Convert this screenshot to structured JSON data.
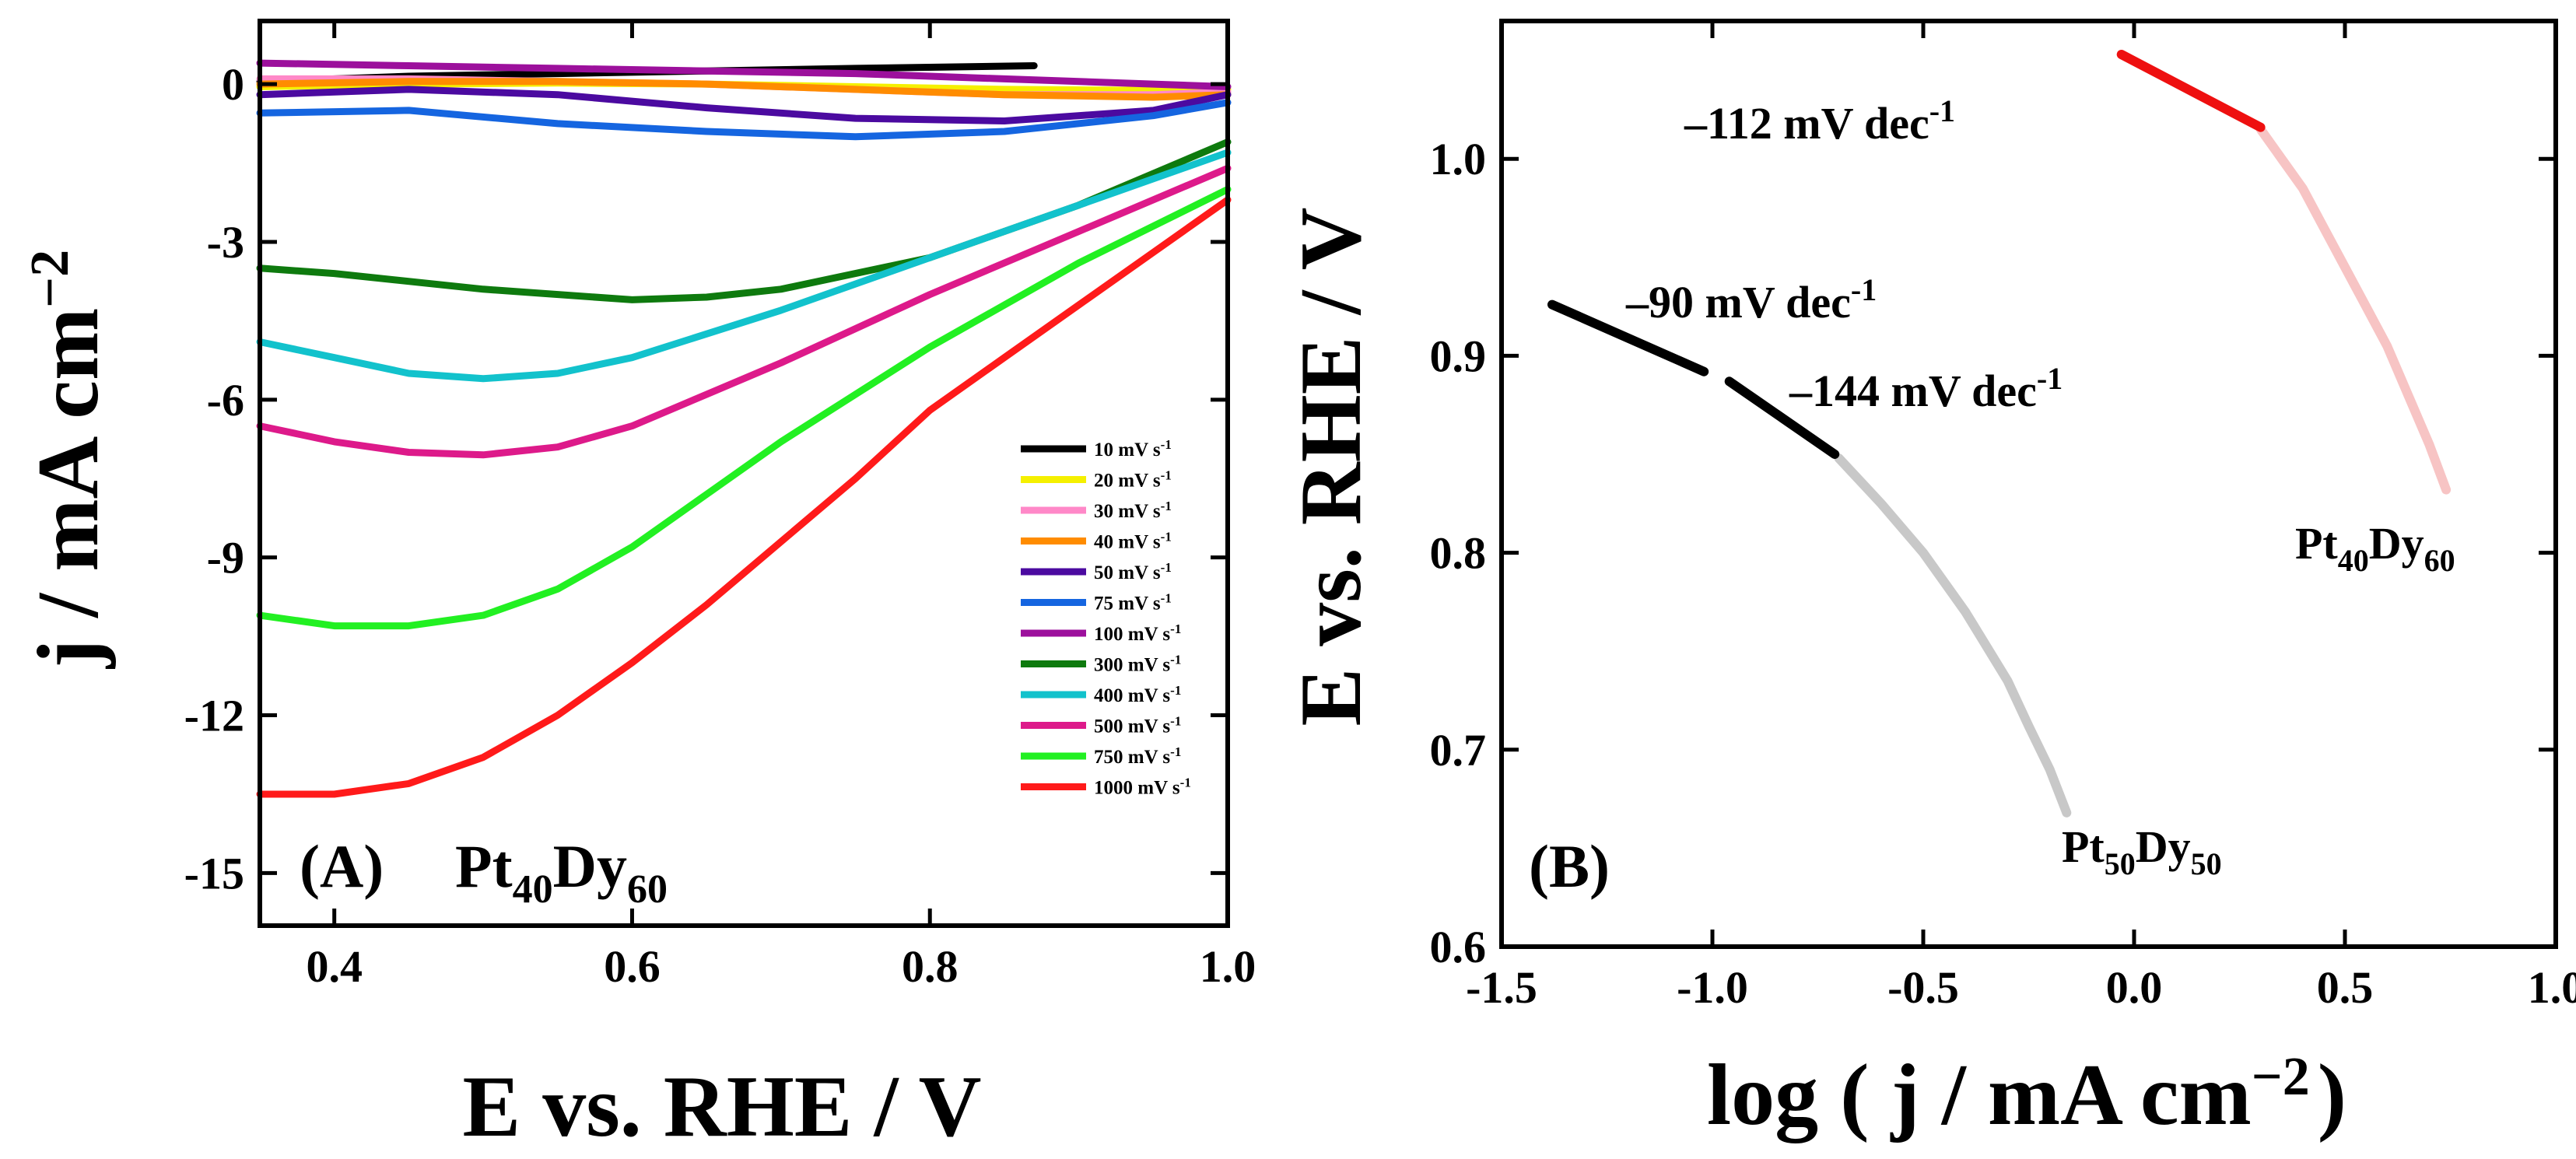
{
  "chart_data": [
    {
      "type": "line",
      "panel": "A",
      "panel_label": "(A)",
      "sample_label": "Pt",
      "sample_sub1": "40",
      "sample_mid": "Dy",
      "sample_sub2": "60",
      "xlabel": "E vs. RHE / V",
      "ylabel_main": "j / mA cm",
      "ylabel_exp": "−2",
      "xlim": [
        0.35,
        1.0
      ],
      "ylim": [
        -16,
        1.2
      ],
      "xticks": [
        0.4,
        0.6,
        0.8,
        1.0
      ],
      "xtick_labels": [
        "0.4",
        "0.6",
        "0.8",
        "1.0"
      ],
      "yticks": [
        0,
        -3,
        -6,
        -9,
        -12,
        -15
      ],
      "ytick_labels": [
        "0",
        "-3",
        "-6",
        "-9",
        "-12",
        "-15"
      ],
      "legend_position": "bottom-right",
      "legend_unit": "mV s",
      "legend_exp": "-1",
      "series": [
        {
          "name": "10",
          "color": "#000000",
          "x": [
            0.35,
            0.45,
            0.55,
            0.65,
            0.75,
            0.87
          ],
          "y": [
            0.05,
            0.15,
            0.2,
            0.25,
            0.3,
            0.35
          ]
        },
        {
          "name": "20",
          "color": "#f5f000",
          "x": [
            0.35,
            0.45,
            0.55,
            0.65,
            0.75,
            0.85,
            0.95,
            1.0
          ],
          "y": [
            -0.05,
            0.0,
            0.02,
            0.0,
            -0.05,
            -0.1,
            -0.12,
            -0.1
          ]
        },
        {
          "name": "30",
          "color": "#ff88c8",
          "x": [
            0.35,
            0.45,
            0.55,
            0.65,
            0.75,
            0.85,
            0.95,
            1.0
          ],
          "y": [
            0.1,
            0.1,
            0.05,
            0.0,
            -0.1,
            -0.2,
            -0.2,
            -0.15
          ]
        },
        {
          "name": "40",
          "color": "#ff8c00",
          "x": [
            0.35,
            0.45,
            0.55,
            0.65,
            0.75,
            0.85,
            0.95,
            1.0
          ],
          "y": [
            0.0,
            0.05,
            0.05,
            0.0,
            -0.1,
            -0.2,
            -0.25,
            -0.2
          ]
        },
        {
          "name": "50",
          "color": "#4b0aa0",
          "x": [
            0.35,
            0.45,
            0.55,
            0.65,
            0.75,
            0.85,
            0.95,
            1.0
          ],
          "y": [
            -0.2,
            -0.1,
            -0.2,
            -0.45,
            -0.65,
            -0.7,
            -0.5,
            -0.2
          ]
        },
        {
          "name": "75",
          "color": "#1565e0",
          "x": [
            0.35,
            0.45,
            0.55,
            0.65,
            0.75,
            0.85,
            0.95,
            1.0
          ],
          "y": [
            -0.55,
            -0.5,
            -0.75,
            -0.9,
            -1.0,
            -0.9,
            -0.6,
            -0.35
          ]
        },
        {
          "name": "100",
          "color": "#9c109c",
          "x": [
            0.35,
            0.45,
            0.55,
            0.65,
            0.75,
            0.85,
            0.95,
            1.0
          ],
          "y": [
            0.4,
            0.35,
            0.3,
            0.25,
            0.2,
            0.1,
            0.0,
            -0.05
          ]
        },
        {
          "name": "300",
          "color": "#0e7a0e",
          "x": [
            0.35,
            0.4,
            0.5,
            0.6,
            0.65,
            0.7,
            0.8,
            0.9,
            1.0
          ],
          "y": [
            -3.5,
            -3.6,
            -3.9,
            -4.1,
            -4.05,
            -3.9,
            -3.3,
            -2.3,
            -1.1
          ]
        },
        {
          "name": "400",
          "color": "#12c2cc",
          "x": [
            0.35,
            0.4,
            0.45,
            0.5,
            0.55,
            0.6,
            0.7,
            0.8,
            0.9,
            1.0
          ],
          "y": [
            -4.9,
            -5.2,
            -5.5,
            -5.6,
            -5.5,
            -5.2,
            -4.3,
            -3.3,
            -2.3,
            -1.3
          ]
        },
        {
          "name": "500",
          "color": "#dd1a8a",
          "x": [
            0.35,
            0.4,
            0.45,
            0.5,
            0.55,
            0.6,
            0.7,
            0.8,
            0.9,
            1.0
          ],
          "y": [
            -6.5,
            -6.8,
            -7.0,
            -7.05,
            -6.9,
            -6.5,
            -5.3,
            -4.0,
            -2.8,
            -1.6
          ]
        },
        {
          "name": "750",
          "color": "#22f022",
          "x": [
            0.35,
            0.4,
            0.45,
            0.5,
            0.55,
            0.6,
            0.65,
            0.7,
            0.8,
            0.9,
            1.0
          ],
          "y": [
            -10.1,
            -10.3,
            -10.3,
            -10.1,
            -9.6,
            -8.8,
            -7.8,
            -6.8,
            -5.0,
            -3.4,
            -2.0
          ]
        },
        {
          "name": "1000",
          "color": "#ff1a1a",
          "x": [
            0.35,
            0.4,
            0.45,
            0.5,
            0.55,
            0.6,
            0.65,
            0.7,
            0.75,
            0.8,
            0.85,
            0.9,
            0.95,
            1.0
          ],
          "y": [
            -13.5,
            -13.5,
            -13.3,
            -12.8,
            -12.0,
            -11.0,
            -9.9,
            -8.7,
            -7.5,
            -6.2,
            -5.2,
            -4.2,
            -3.2,
            -2.2
          ]
        }
      ]
    },
    {
      "type": "line",
      "panel": "B",
      "panel_label": "(B)",
      "xlabel_main": "log ( j / mA cm",
      "xlabel_exp": "−2",
      "xlabel_end": ")",
      "ylabel": "E vs. RHE / V",
      "xlim": [
        -1.5,
        1.0
      ],
      "ylim": [
        0.6,
        1.07
      ],
      "xticks": [
        -1.5,
        -1.0,
        -0.5,
        0.0,
        0.5,
        1.0
      ],
      "xtick_labels": [
        "-1.5",
        "-1.0",
        "-0.5",
        "0.0",
        "0.5",
        "1.0"
      ],
      "yticks": [
        0.6,
        0.7,
        0.8,
        0.9,
        1.0
      ],
      "ytick_labels": [
        "0.6",
        "0.7",
        "0.8",
        "0.9",
        "1.0"
      ],
      "series": [
        {
          "name": "Pt50Dy50 data",
          "color": "#c8c8c8",
          "x": [
            -0.7,
            -0.6,
            -0.5,
            -0.4,
            -0.3,
            -0.25,
            -0.2,
            -0.16
          ],
          "y": [
            0.848,
            0.825,
            0.8,
            0.77,
            0.735,
            0.712,
            0.69,
            0.668
          ]
        },
        {
          "name": "Pt50Dy50 fit low",
          "color": "#000000",
          "x": [
            -1.38,
            -1.02
          ],
          "y": [
            0.926,
            0.892
          ]
        },
        {
          "name": "Pt50Dy50 fit high",
          "color": "#000000",
          "x": [
            -0.96,
            -0.71
          ],
          "y": [
            0.887,
            0.85
          ]
        },
        {
          "name": "Pt40Dy60 data",
          "color": "#f7c4c4",
          "x": [
            0.3,
            0.35,
            0.4,
            0.45,
            0.5,
            0.55,
            0.6,
            0.65,
            0.7,
            0.74
          ],
          "y": [
            1.015,
            1.0,
            0.985,
            0.965,
            0.945,
            0.925,
            0.905,
            0.88,
            0.855,
            0.832
          ]
        },
        {
          "name": "Pt40Dy60 fit",
          "color": "#ee1010",
          "x": [
            -0.03,
            0.3
          ],
          "y": [
            1.053,
            1.016
          ]
        }
      ],
      "annotations": [
        {
          "text": "–112 mV dec",
          "exp": "-1"
        },
        {
          "text": "–90 mV dec",
          "exp": "-1"
        },
        {
          "text": "–144 mV dec",
          "exp": "-1"
        }
      ],
      "sample_labels": [
        {
          "main": "Pt",
          "sub1": "40",
          "mid": "Dy",
          "sub2": "60"
        },
        {
          "main": "Pt",
          "sub1": "50",
          "mid": "Dy",
          "sub2": "50"
        }
      ]
    }
  ]
}
